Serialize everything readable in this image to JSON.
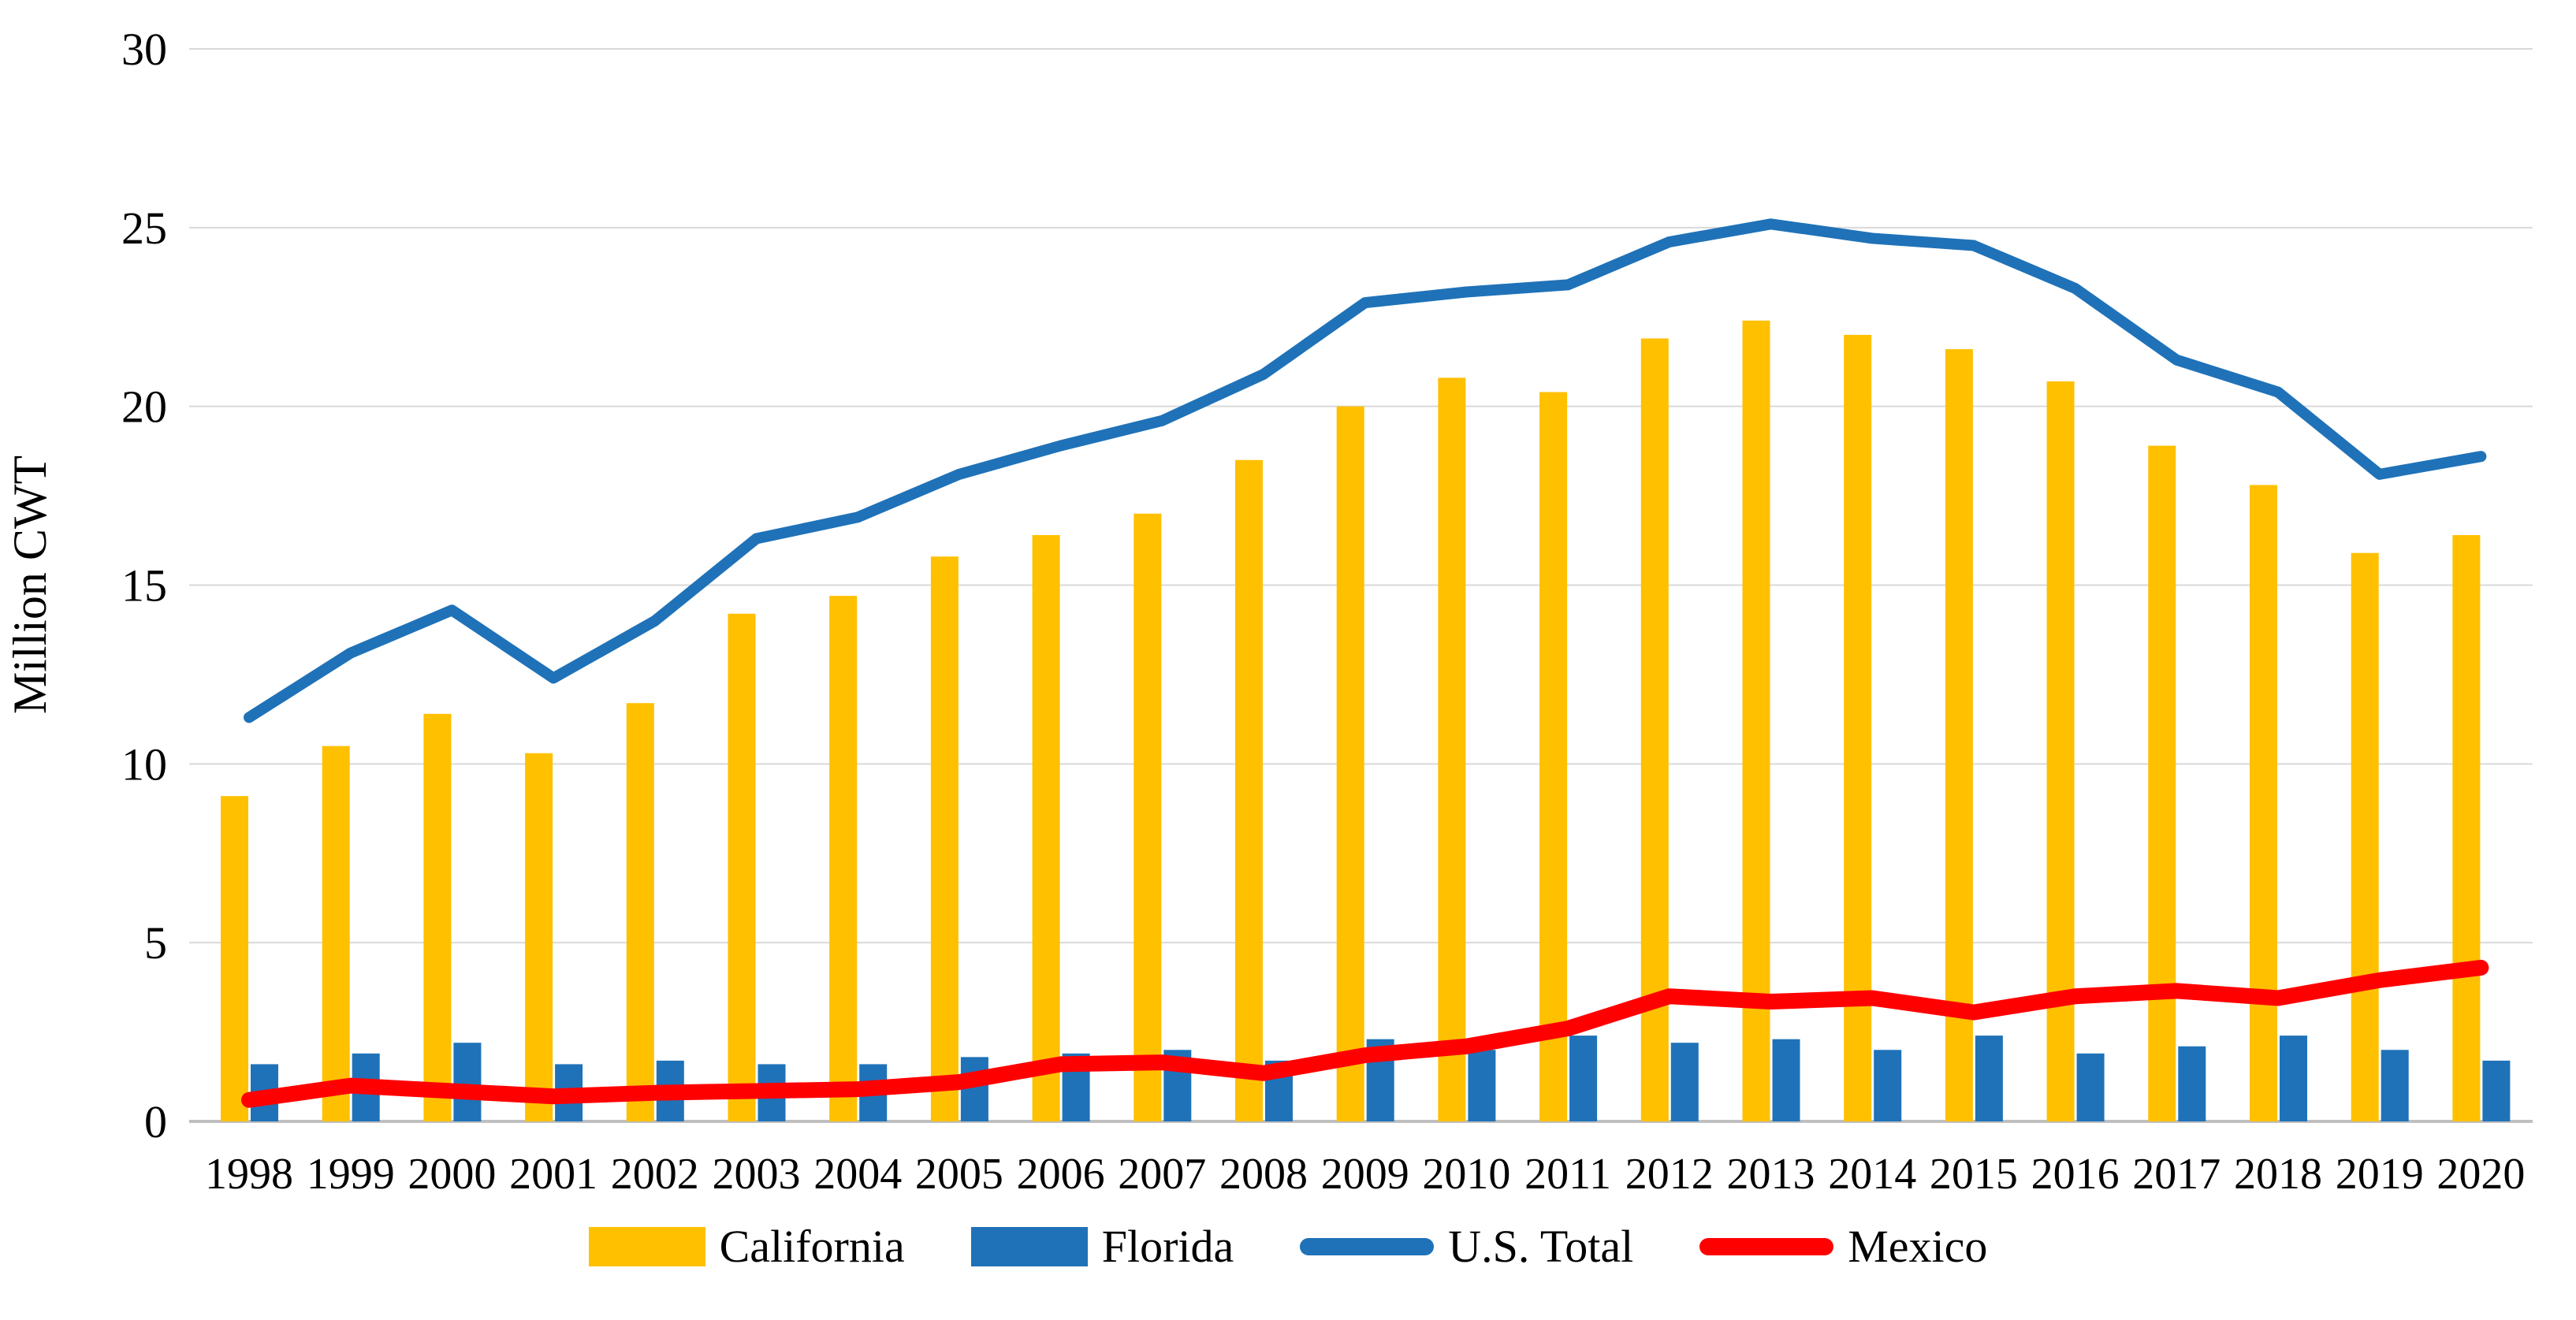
{
  "page": {
    "background": "#FFFFFF",
    "text_color": "#000000"
  },
  "chart_data": {
    "type": "combo-bar-line",
    "title": "",
    "xlabel": "",
    "ylabel": "Million CWT",
    "ylim": [
      0,
      30
    ],
    "yticks": [
      0,
      5,
      10,
      15,
      20,
      25,
      30
    ],
    "grid": "horizontal",
    "gridline_color": "#D9D9D9",
    "axis_line_color": "#BFBFBF",
    "legend_position": "bottom-center",
    "categories": [
      "1998",
      "1999",
      "2000",
      "2001",
      "2002",
      "2003",
      "2004",
      "2005",
      "2006",
      "2007",
      "2008",
      "2009",
      "2010",
      "2011",
      "2012",
      "2013",
      "2014",
      "2015",
      "2016",
      "2017",
      "2018",
      "2019",
      "2020"
    ],
    "series": [
      {
        "name": "California",
        "type": "bar",
        "color": "#FFC000",
        "values": [
          9.1,
          10.5,
          11.4,
          10.3,
          11.7,
          14.2,
          14.7,
          15.8,
          16.4,
          17.0,
          18.5,
          20.0,
          20.8,
          20.4,
          21.9,
          22.4,
          22.0,
          21.6,
          20.7,
          18.9,
          17.8,
          15.9,
          16.4
        ]
      },
      {
        "name": "Florida",
        "type": "bar",
        "color": "#1F72B8",
        "values": [
          1.6,
          1.9,
          2.2,
          1.6,
          1.7,
          1.6,
          1.6,
          1.8,
          1.9,
          2.0,
          1.7,
          2.3,
          2.0,
          2.4,
          2.2,
          2.3,
          2.0,
          2.4,
          1.9,
          2.1,
          2.4,
          2.0,
          1.7
        ]
      },
      {
        "name": "U.S. Total",
        "type": "line",
        "color": "#1F72B8",
        "values": [
          11.3,
          13.1,
          14.3,
          12.4,
          14.0,
          16.3,
          16.9,
          18.1,
          18.9,
          19.6,
          20.9,
          22.9,
          23.2,
          23.4,
          24.6,
          25.1,
          24.7,
          24.5,
          23.3,
          21.3,
          20.4,
          18.1,
          18.6
        ]
      },
      {
        "name": "Mexico",
        "type": "line",
        "color": "#FF0000",
        "values": [
          0.6,
          1.0,
          0.85,
          0.7,
          0.8,
          0.85,
          0.9,
          1.1,
          1.6,
          1.65,
          1.35,
          1.85,
          2.1,
          2.6,
          3.5,
          3.35,
          3.45,
          3.05,
          3.5,
          3.65,
          3.45,
          3.95,
          4.3
        ]
      }
    ]
  }
}
